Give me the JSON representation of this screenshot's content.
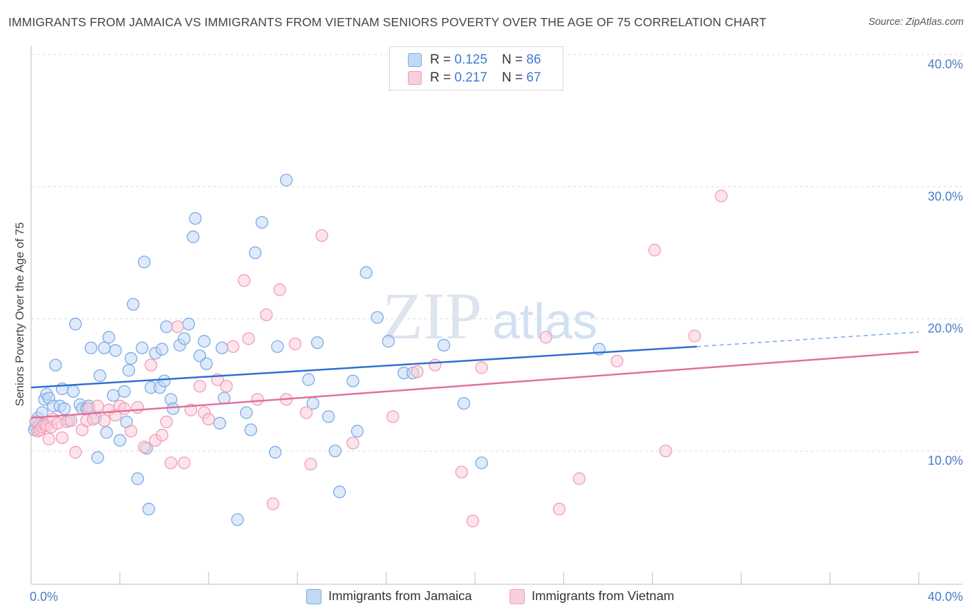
{
  "header": {
    "title": "IMMIGRANTS FROM JAMAICA VS IMMIGRANTS FROM VIETNAM SENIORS POVERTY OVER THE AGE OF 75 CORRELATION CHART",
    "source": "Source: ZipAtlas.com"
  },
  "watermark": {
    "zip": "ZIP",
    "atlas": "atlas"
  },
  "legend": {
    "rows": [
      {
        "r_label": "R = ",
        "r_value": "0.125",
        "n_label": "N = ",
        "n_value": "86",
        "color": "#a8c8f0"
      },
      {
        "r_label": "R = ",
        "r_value": "0.217",
        "n_label": "N = ",
        "n_value": "67",
        "color": "#f6b8cc"
      }
    ]
  },
  "chart_data": {
    "type": "scatter",
    "ylabel": "Seniors Poverty Over the Age of 75",
    "x_tick_labels": [
      "0.0%",
      "40.0%"
    ],
    "y_tick_labels": [
      "10.0%",
      "20.0%",
      "30.0%",
      "40.0%"
    ],
    "xlim": [
      0,
      40
    ],
    "ylim": [
      0,
      41
    ],
    "grid": true,
    "legend_position": "top-center",
    "series": [
      {
        "name": "Immigrants from Jamaica",
        "color": "#7aaae6",
        "fill": "#c2d9f5",
        "trend": {
          "x0": 0.0,
          "y0": 14.8,
          "x1": 30.0,
          "y1": 17.9,
          "dash_to_x": 40.0,
          "dash_to_y": 19.0
        },
        "points": [
          [
            0.2,
            11.8
          ],
          [
            0.3,
            12.5
          ],
          [
            0.4,
            12.0
          ],
          [
            0.5,
            12.9
          ],
          [
            0.6,
            13.9
          ],
          [
            0.7,
            14.3
          ],
          [
            0.8,
            14.0
          ],
          [
            1.0,
            13.4
          ],
          [
            1.1,
            16.5
          ],
          [
            1.3,
            13.4
          ],
          [
            1.4,
            14.7
          ],
          [
            1.5,
            13.2
          ],
          [
            1.7,
            12.3
          ],
          [
            1.9,
            14.5
          ],
          [
            2.0,
            19.6
          ],
          [
            2.2,
            13.5
          ],
          [
            2.3,
            13.2
          ],
          [
            2.5,
            13.2
          ],
          [
            2.6,
            13.4
          ],
          [
            2.7,
            17.8
          ],
          [
            2.9,
            12.5
          ],
          [
            3.0,
            9.5
          ],
          [
            3.1,
            15.7
          ],
          [
            3.3,
            17.8
          ],
          [
            3.4,
            11.4
          ],
          [
            3.5,
            18.6
          ],
          [
            3.7,
            14.2
          ],
          [
            3.8,
            17.6
          ],
          [
            4.0,
            10.8
          ],
          [
            4.2,
            14.5
          ],
          [
            4.3,
            12.2
          ],
          [
            4.4,
            16.1
          ],
          [
            4.5,
            17.0
          ],
          [
            4.6,
            21.1
          ],
          [
            4.8,
            7.9
          ],
          [
            5.0,
            17.8
          ],
          [
            5.1,
            24.3
          ],
          [
            5.2,
            10.2
          ],
          [
            5.3,
            5.6
          ],
          [
            5.4,
            14.8
          ],
          [
            5.6,
            17.4
          ],
          [
            5.8,
            14.8
          ],
          [
            5.9,
            17.7
          ],
          [
            6.0,
            15.3
          ],
          [
            6.1,
            19.4
          ],
          [
            6.3,
            13.9
          ],
          [
            6.4,
            13.2
          ],
          [
            6.7,
            18.0
          ],
          [
            6.9,
            18.5
          ],
          [
            7.1,
            19.6
          ],
          [
            7.3,
            26.2
          ],
          [
            7.4,
            27.6
          ],
          [
            7.6,
            17.2
          ],
          [
            7.8,
            18.3
          ],
          [
            7.9,
            16.6
          ],
          [
            8.5,
            12.1
          ],
          [
            8.6,
            17.8
          ],
          [
            8.7,
            14.0
          ],
          [
            9.3,
            4.8
          ],
          [
            9.7,
            12.9
          ],
          [
            9.9,
            11.6
          ],
          [
            10.1,
            25.0
          ],
          [
            10.4,
            27.3
          ],
          [
            11.0,
            9.9
          ],
          [
            11.1,
            17.9
          ],
          [
            11.5,
            30.5
          ],
          [
            12.5,
            15.4
          ],
          [
            12.7,
            13.6
          ],
          [
            12.9,
            18.2
          ],
          [
            13.4,
            12.6
          ],
          [
            13.7,
            10.0
          ],
          [
            13.9,
            6.9
          ],
          [
            14.5,
            15.3
          ],
          [
            14.7,
            11.5
          ],
          [
            15.1,
            23.5
          ],
          [
            15.6,
            20.1
          ],
          [
            16.1,
            18.3
          ],
          [
            16.8,
            15.9
          ],
          [
            17.2,
            15.9
          ],
          [
            18.6,
            18.0
          ],
          [
            19.5,
            13.6
          ],
          [
            20.3,
            9.1
          ],
          [
            25.6,
            17.7
          ],
          [
            0.15,
            11.6
          ],
          [
            0.25,
            12.2
          ],
          [
            0.35,
            11.9
          ]
        ]
      },
      {
        "name": "Immigrants from Vietnam",
        "color": "#f39ab7",
        "fill": "#f9cedb",
        "trend": {
          "x0": 0.0,
          "y0": 12.5,
          "x1": 40.0,
          "y1": 17.5
        },
        "points": [
          [
            0.2,
            12.2
          ],
          [
            0.3,
            11.5
          ],
          [
            0.4,
            11.6
          ],
          [
            0.5,
            11.8
          ],
          [
            0.6,
            12.0
          ],
          [
            0.7,
            11.9
          ],
          [
            0.8,
            10.9
          ],
          [
            0.9,
            11.8
          ],
          [
            1.0,
            12.4
          ],
          [
            1.2,
            12.1
          ],
          [
            1.4,
            11.0
          ],
          [
            1.6,
            12.2
          ],
          [
            1.8,
            12.3
          ],
          [
            2.0,
            9.9
          ],
          [
            2.3,
            11.6
          ],
          [
            2.5,
            12.3
          ],
          [
            2.6,
            13.2
          ],
          [
            2.8,
            12.4
          ],
          [
            3.0,
            13.4
          ],
          [
            3.3,
            12.3
          ],
          [
            3.5,
            13.1
          ],
          [
            3.8,
            12.7
          ],
          [
            4.0,
            13.4
          ],
          [
            4.2,
            13.2
          ],
          [
            4.5,
            11.5
          ],
          [
            4.8,
            13.3
          ],
          [
            5.1,
            10.3
          ],
          [
            5.4,
            16.5
          ],
          [
            5.6,
            10.8
          ],
          [
            5.9,
            11.2
          ],
          [
            6.1,
            12.2
          ],
          [
            6.3,
            9.1
          ],
          [
            6.6,
            19.4
          ],
          [
            6.9,
            9.1
          ],
          [
            7.2,
            13.1
          ],
          [
            7.6,
            14.9
          ],
          [
            7.8,
            12.9
          ],
          [
            8.0,
            12.4
          ],
          [
            8.4,
            15.4
          ],
          [
            8.8,
            14.9
          ],
          [
            9.1,
            17.9
          ],
          [
            9.6,
            22.9
          ],
          [
            9.8,
            18.5
          ],
          [
            10.2,
            13.9
          ],
          [
            10.6,
            20.3
          ],
          [
            10.9,
            6.0
          ],
          [
            11.2,
            22.2
          ],
          [
            11.5,
            13.9
          ],
          [
            11.9,
            18.1
          ],
          [
            12.4,
            12.9
          ],
          [
            12.6,
            9.0
          ],
          [
            13.1,
            26.3
          ],
          [
            14.5,
            10.6
          ],
          [
            16.3,
            12.6
          ],
          [
            17.4,
            16.0
          ],
          [
            18.2,
            16.5
          ],
          [
            19.4,
            8.4
          ],
          [
            20.3,
            16.3
          ],
          [
            23.2,
            18.6
          ],
          [
            24.7,
            7.9
          ],
          [
            26.4,
            16.8
          ],
          [
            28.1,
            25.2
          ],
          [
            28.6,
            10.0
          ],
          [
            29.9,
            18.7
          ],
          [
            31.1,
            29.3
          ],
          [
            23.8,
            5.6
          ],
          [
            19.9,
            4.7
          ]
        ]
      }
    ]
  }
}
